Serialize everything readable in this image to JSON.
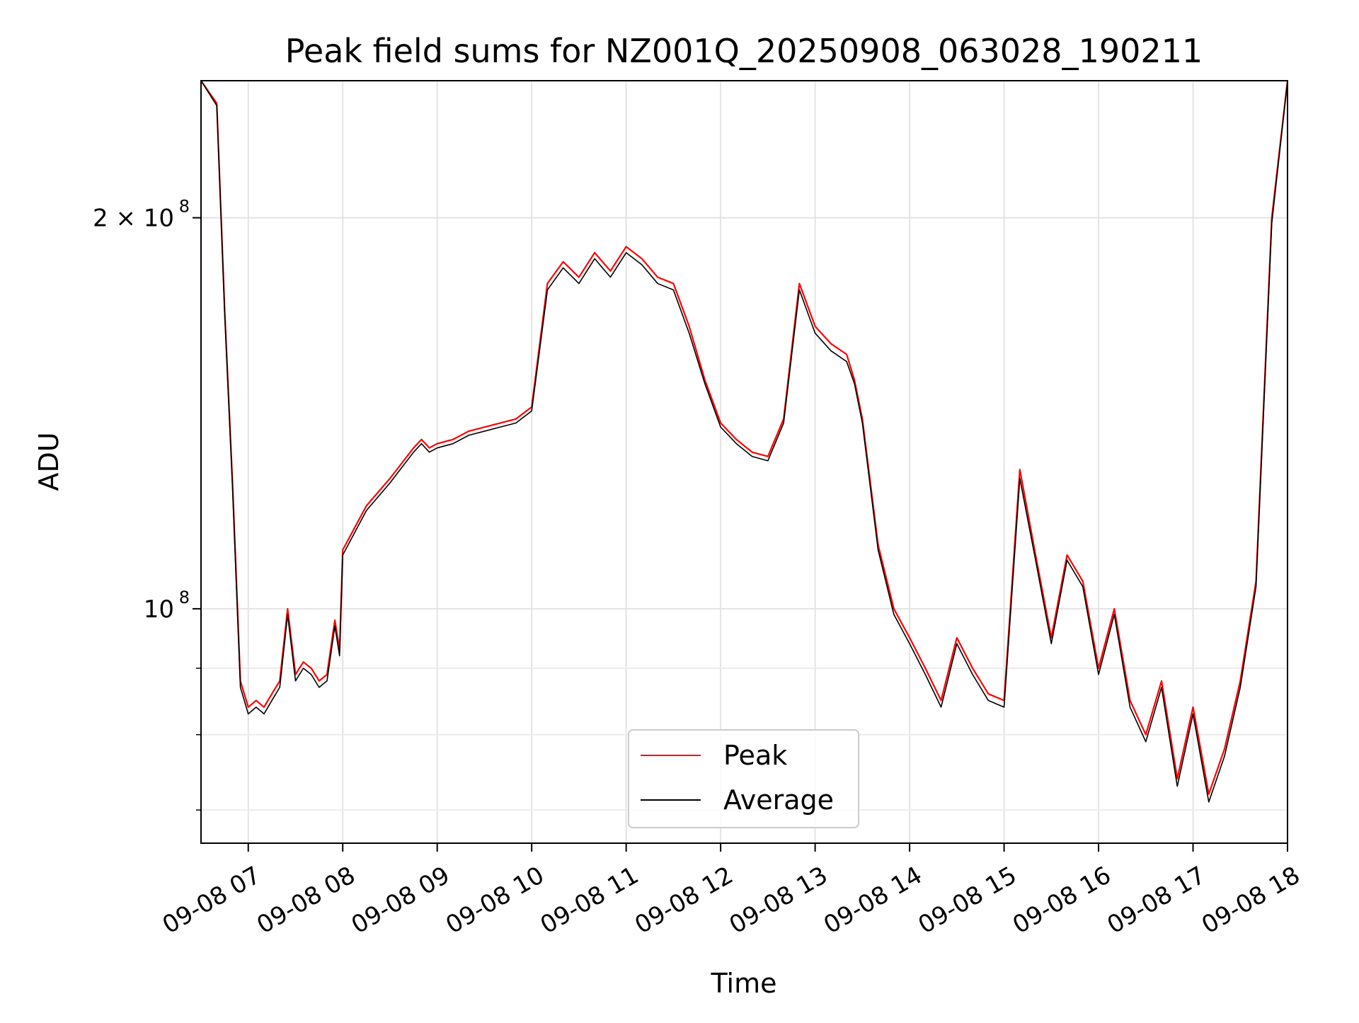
{
  "chart_data": {
    "type": "line",
    "title": "Peak field sums for NZ001Q_20250908_063028_190211",
    "xlabel": "Time",
    "ylabel": "ADU",
    "yscale": "log",
    "xlim": [
      "2025-09-08 06:30",
      "2025-09-08 18:00"
    ],
    "ylim": [
      66000000,
      255000000
    ],
    "x_ticks": [
      "09-08 07",
      "09-08 08",
      "09-08 09",
      "09-08 10",
      "09-08 11",
      "09-08 12",
      "09-08 13",
      "09-08 14",
      "09-08 15",
      "09-08 16",
      "09-08 17",
      "09-08 18"
    ],
    "y_ticks": [
      {
        "label_main": "2 × 10",
        "label_exp": "8",
        "value": 200000000
      },
      {
        "label_main": "10",
        "label_exp": "8",
        "value": 100000000
      }
    ],
    "grid": true,
    "legend_position": "lower center",
    "x": [
      "06:30",
      "06:40",
      "06:45",
      "06:50",
      "06:55",
      "07:00",
      "07:05",
      "07:10",
      "07:15",
      "07:20",
      "07:25",
      "07:30",
      "07:35",
      "07:40",
      "07:45",
      "07:50",
      "07:55",
      "07:58",
      "08:00",
      "08:15",
      "08:30",
      "08:45",
      "08:50",
      "08:55",
      "09:00",
      "09:10",
      "09:20",
      "09:30",
      "09:40",
      "09:50",
      "10:00",
      "10:10",
      "10:20",
      "10:30",
      "10:40",
      "10:50",
      "11:00",
      "11:10",
      "11:20",
      "11:30",
      "11:40",
      "11:50",
      "12:00",
      "12:10",
      "12:20",
      "12:30",
      "12:40",
      "12:50",
      "13:00",
      "13:10",
      "13:20",
      "13:25",
      "13:30",
      "13:40",
      "13:50",
      "14:00",
      "14:10",
      "14:20",
      "14:30",
      "14:40",
      "14:50",
      "15:00",
      "15:10",
      "15:20",
      "15:30",
      "15:40",
      "15:50",
      "16:00",
      "16:10",
      "16:20",
      "16:30",
      "16:40",
      "16:50",
      "17:00",
      "17:10",
      "17:20",
      "17:30",
      "17:40",
      "17:50",
      "18:00"
    ],
    "series": [
      {
        "name": "Peak",
        "color": "#ff0000",
        "values": [
          255000000,
          245000000,
          170000000,
          125000000,
          88000000,
          84000000,
          85000000,
          84000000,
          86000000,
          88000000,
          100000000,
          89000000,
          91000000,
          90000000,
          88000000,
          89000000,
          98000000,
          93000000,
          111000000,
          120000000,
          126000000,
          133000000,
          135000000,
          133000000,
          134000000,
          135000000,
          137000000,
          138000000,
          139000000,
          140000000,
          143000000,
          178000000,
          185000000,
          180000000,
          188000000,
          182000000,
          190000000,
          186000000,
          180000000,
          178000000,
          165000000,
          150000000,
          139000000,
          135000000,
          132000000,
          131000000,
          140000000,
          178000000,
          165000000,
          160000000,
          157000000,
          150000000,
          140000000,
          112000000,
          100000000,
          95000000,
          90000000,
          85000000,
          95000000,
          90000000,
          86000000,
          85000000,
          128000000,
          110000000,
          95000000,
          110000000,
          105000000,
          90000000,
          100000000,
          85000000,
          80000000,
          88000000,
          74000000,
          84000000,
          72000000,
          78000000,
          88000000,
          105000000,
          200000000,
          255000000
        ]
      },
      {
        "name": "Average",
        "color": "#000000",
        "values": [
          255000000,
          244000000,
          169000000,
          124000000,
          87000000,
          83000000,
          84000000,
          83000000,
          85000000,
          87000000,
          99000000,
          88000000,
          90000000,
          89000000,
          87000000,
          88000000,
          97000000,
          92000000,
          110000000,
          119000000,
          125000000,
          132000000,
          134000000,
          132000000,
          133000000,
          134000000,
          136000000,
          137000000,
          138000000,
          139000000,
          142000000,
          176000000,
          183000000,
          178000000,
          186000000,
          180000000,
          188000000,
          184000000,
          178000000,
          176000000,
          163000000,
          149000000,
          138000000,
          134000000,
          131000000,
          130000000,
          139000000,
          176000000,
          163000000,
          158000000,
          155000000,
          149000000,
          139000000,
          111000000,
          99000000,
          94000000,
          89000000,
          84000000,
          94000000,
          89000000,
          85000000,
          84000000,
          126000000,
          109000000,
          94000000,
          109000000,
          104000000,
          89000000,
          99000000,
          84000000,
          79000000,
          87000000,
          73000000,
          83000000,
          71000000,
          77000000,
          87000000,
          104000000,
          198000000,
          255000000
        ]
      }
    ]
  }
}
